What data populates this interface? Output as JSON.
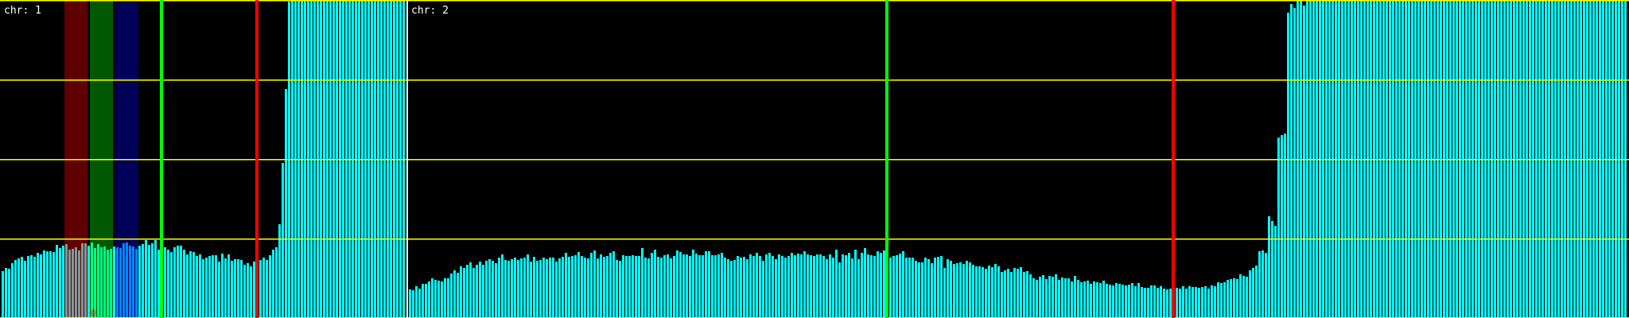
{
  "chart_data": {
    "type": "bar",
    "ylim": [
      0,
      400
    ],
    "gridlines": [
      0,
      100,
      200,
      300,
      400
    ],
    "grid": true,
    "colors": {
      "background": "#000000",
      "bar": "#00ffff",
      "grid": "#ffff00",
      "divider": "#ffffff",
      "marker_green": "#00ff00",
      "marker_red": "#ff0000"
    },
    "panels": [
      {
        "label": "chr: 1",
        "values": [
          59,
          63,
          62,
          69,
          73,
          75,
          77,
          72,
          78,
          79,
          77,
          82,
          80,
          85,
          84,
          84,
          83,
          92,
          88,
          91,
          93,
          86,
          87,
          89,
          85,
          94,
          94,
          91,
          95,
          88,
          93,
          89,
          90,
          86,
          87,
          90,
          89,
          88,
          94,
          95,
          91,
          90,
          87,
          91,
          93,
          98,
          92,
          94,
          98,
          86,
          90,
          89,
          86,
          83,
          89,
          91,
          91,
          86,
          80,
          84,
          83,
          78,
          80,
          74,
          76,
          78,
          79,
          79,
          71,
          81,
          75,
          80,
          72,
          74,
          74,
          73,
          67,
          69,
          65,
          71,
          72,
          73,
          76,
          73,
          79,
          86,
          89,
          118,
          195,
          288,
          398,
          400,
          400,
          400,
          400,
          400,
          400,
          400,
          400,
          400,
          400,
          400,
          400,
          400,
          400,
          400,
          400,
          400,
          400,
          400,
          400,
          400,
          400,
          400,
          400,
          400,
          400,
          400,
          400,
          400,
          400,
          400,
          400,
          400,
          400,
          400,
          400
        ],
        "bands": [
          {
            "start_bin": 20,
            "end_bin": 26,
            "color": "#5e0000",
            "bar_color": "#7f9a9a"
          },
          {
            "start_bin": 28,
            "end_bin": 34,
            "color": "#005800",
            "bar_color": "#00ff88"
          },
          {
            "start_bin": 36,
            "end_bin": 42,
            "color": "#000058",
            "bar_color": "#0088ff"
          }
        ],
        "markers": [
          {
            "bin": 50,
            "color": "#00ff00"
          },
          {
            "bin": 80,
            "color": "#ff0000"
          }
        ],
        "annotation": {
          "text": "0",
          "bin": 28
        }
      },
      {
        "label": "chr: 2",
        "values": [
          36,
          35,
          40,
          37,
          43,
          43,
          46,
          50,
          48,
          47,
          46,
          50,
          50,
          56,
          60,
          57,
          65,
          63,
          67,
          70,
          63,
          67,
          71,
          67,
          72,
          74,
          72,
          69,
          76,
          80,
          73,
          72,
          74,
          76,
          73,
          75,
          76,
          80,
          71,
          77,
          72,
          73,
          76,
          74,
          76,
          76,
          71,
          75,
          77,
          82,
          77,
          78,
          79,
          83,
          78,
          76,
          75,
          82,
          85,
          75,
          80,
          77,
          78,
          82,
          84,
          73,
          72,
          79,
          78,
          78,
          79,
          78,
          78,
          88,
          76,
          75,
          82,
          86,
          77,
          76,
          79,
          80,
          75,
          78,
          85,
          83,
          80,
          80,
          78,
          86,
          81,
          79,
          79,
          84,
          84,
          79,
          79,
          80,
          82,
          76,
          74,
          72,
          73,
          78,
          76,
          77,
          74,
          80,
          78,
          82,
          78,
          72,
          80,
          82,
          78,
          74,
          80,
          78,
          76,
          78,
          82,
          79,
          81,
          80,
          84,
          80,
          79,
          78,
          80,
          80,
          78,
          74,
          80,
          76,
          86,
          70,
          80,
          79,
          82,
          75,
          86,
          74,
          82,
          88,
          80,
          79,
          78,
          84,
          82,
          85,
          84,
          76,
          78,
          79,
          81,
          84,
          76,
          76,
          76,
          72,
          70,
          70,
          76,
          74,
          69,
          76,
          77,
          78,
          63,
          74,
          72,
          68,
          69,
          70,
          68,
          72,
          70,
          67,
          65,
          65,
          64,
          62,
          66,
          64,
          68,
          65,
          58,
          60,
          62,
          58,
          63,
          62,
          64,
          58,
          59,
          55,
          50,
          48,
          52,
          54,
          49,
          53,
          52,
          55,
          48,
          51,
          50,
          50,
          46,
          53,
          48,
          45,
          46,
          47,
          43,
          46,
          45,
          44,
          47,
          43,
          42,
          41,
          44,
          43,
          42,
          41,
          42,
          44,
          40,
          44,
          39,
          38,
          38,
          41,
          41,
          38,
          40,
          37,
          36,
          37,
          37,
          38,
          37,
          40,
          37,
          40,
          39,
          39,
          38,
          39,
          40,
          37,
          41,
          40,
          45,
          44,
          45,
          48,
          49,
          50,
          49,
          55,
          53,
          52,
          60,
          63,
          66,
          84,
          85,
          82,
          128,
          122,
          116,
          227,
          230,
          232,
          384,
          395,
          390,
          400,
          400,
          393,
          400,
          400,
          400,
          400,
          400,
          400,
          400,
          400,
          400,
          400,
          400,
          400,
          400,
          400,
          400,
          400,
          400,
          400,
          400,
          400,
          400,
          400,
          400,
          400,
          400,
          400,
          400,
          400,
          400,
          400,
          400,
          400,
          400,
          400,
          400,
          400,
          400,
          400,
          400,
          400,
          400,
          400,
          400,
          400,
          400,
          400,
          400,
          400,
          400,
          400,
          400,
          400,
          400,
          400,
          400,
          400,
          400,
          400,
          400,
          400,
          400,
          400,
          400,
          400,
          400,
          400,
          400,
          400,
          400,
          400,
          400,
          400,
          400,
          400,
          400,
          400,
          400,
          400,
          400,
          400,
          400,
          400,
          400,
          400,
          400,
          400,
          400,
          400,
          400,
          400,
          400,
          400,
          400,
          400,
          400,
          400,
          400,
          400,
          400,
          400,
          400
        ],
        "bands": [],
        "markers": [
          {
            "bin": 150,
            "color": "#00ff00"
          },
          {
            "bin": 240,
            "color": "#ff0000"
          }
        ]
      }
    ]
  }
}
